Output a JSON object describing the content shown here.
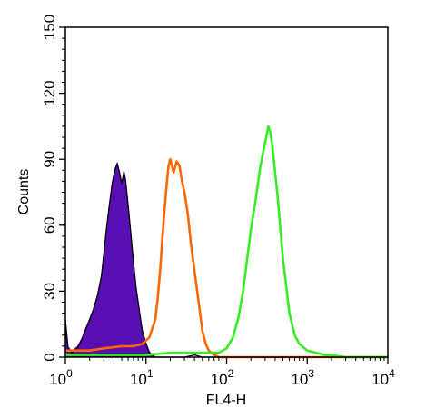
{
  "chart_data": {
    "type": "area",
    "xlabel": "FL4-H",
    "ylabel": "Counts",
    "xscale": "log",
    "xlim": [
      1,
      10000
    ],
    "ylim": [
      0,
      150
    ],
    "x_ticks": [
      {
        "base": "10",
        "exp": "0"
      },
      {
        "base": "10",
        "exp": "1"
      },
      {
        "base": "10",
        "exp": "2"
      },
      {
        "base": "10",
        "exp": "3"
      },
      {
        "base": "10",
        "exp": "4"
      }
    ],
    "y_ticks": [
      "0",
      "30",
      "60",
      "90",
      "120",
      "150"
    ],
    "grid": false,
    "series": [
      {
        "color": "#5a0fb4",
        "fill": true,
        "points": [
          [
            1.0,
            17
          ],
          [
            1.08,
            5
          ],
          [
            1.2,
            3
          ],
          [
            1.4,
            5
          ],
          [
            1.6,
            9
          ],
          [
            1.8,
            14
          ],
          [
            2.0,
            18
          ],
          [
            2.2,
            22
          ],
          [
            2.5,
            29
          ],
          [
            2.8,
            38
          ],
          [
            3.0,
            48
          ],
          [
            3.2,
            58
          ],
          [
            3.5,
            70
          ],
          [
            3.8,
            80
          ],
          [
            4.1,
            86
          ],
          [
            4.4,
            89
          ],
          [
            4.7,
            85
          ],
          [
            5.0,
            79
          ],
          [
            5.3,
            86
          ],
          [
            5.6,
            82
          ],
          [
            6.0,
            70
          ],
          [
            6.5,
            57
          ],
          [
            7.0,
            44
          ],
          [
            7.5,
            33
          ],
          [
            8.0,
            26
          ],
          [
            8.5,
            19
          ],
          [
            9.0,
            13
          ],
          [
            10.0,
            7
          ],
          [
            11.0,
            3
          ],
          [
            12.0,
            1
          ],
          [
            13.0,
            0
          ],
          [
            14.0,
            0
          ]
        ]
      },
      {
        "color": "#000000",
        "fill": false,
        "points": [
          [
            1.0,
            17
          ],
          [
            1.08,
            4
          ],
          [
            1.2,
            2
          ],
          [
            1.4,
            4
          ],
          [
            1.6,
            8
          ],
          [
            1.8,
            13
          ],
          [
            2.0,
            17
          ],
          [
            2.2,
            21
          ],
          [
            2.5,
            28
          ],
          [
            2.8,
            37
          ],
          [
            3.0,
            47
          ],
          [
            3.2,
            57
          ],
          [
            3.5,
            69
          ],
          [
            3.8,
            79
          ],
          [
            4.1,
            85
          ],
          [
            4.4,
            88
          ],
          [
            4.7,
            84
          ],
          [
            5.0,
            79
          ],
          [
            5.3,
            84
          ],
          [
            5.6,
            80
          ],
          [
            6.0,
            69
          ],
          [
            6.5,
            56
          ],
          [
            7.0,
            43
          ],
          [
            7.5,
            32
          ],
          [
            8.0,
            25
          ],
          [
            8.5,
            18
          ],
          [
            9.0,
            12
          ],
          [
            10.0,
            6
          ],
          [
            11.0,
            2
          ],
          [
            13.0,
            0
          ],
          [
            20.0,
            0
          ],
          [
            30.0,
            0
          ],
          [
            40.0,
            1
          ],
          [
            50.0,
            0
          ],
          [
            70.0,
            0
          ],
          [
            100.0,
            0
          ],
          [
            200.0,
            0
          ],
          [
            1000.0,
            0
          ],
          [
            10000.0,
            0
          ]
        ]
      },
      {
        "color": "#ff6600",
        "fill": false,
        "points": [
          [
            1.0,
            3
          ],
          [
            2.0,
            3
          ],
          [
            3.0,
            4
          ],
          [
            5.0,
            5
          ],
          [
            7.0,
            5
          ],
          [
            9.0,
            6
          ],
          [
            11.0,
            9
          ],
          [
            13.0,
            17
          ],
          [
            14.0,
            27
          ],
          [
            15.0,
            40
          ],
          [
            16.0,
            55
          ],
          [
            17.0,
            67
          ],
          [
            18.0,
            78
          ],
          [
            19.0,
            87
          ],
          [
            20.0,
            90
          ],
          [
            21.0,
            87
          ],
          [
            22.0,
            84
          ],
          [
            24.0,
            89
          ],
          [
            26.0,
            87
          ],
          [
            28.0,
            80
          ],
          [
            30.0,
            75
          ],
          [
            33.0,
            65
          ],
          [
            36.0,
            52
          ],
          [
            40.0,
            39
          ],
          [
            45.0,
            25
          ],
          [
            50.0,
            12
          ],
          [
            55.0,
            6
          ],
          [
            60.0,
            3
          ],
          [
            70.0,
            1
          ],
          [
            80.0,
            0
          ],
          [
            100.0,
            0
          ],
          [
            200.0,
            0
          ],
          [
            500.0,
            0
          ],
          [
            1000.0,
            0
          ],
          [
            10000.0,
            0
          ]
        ]
      },
      {
        "color": "#33ee22",
        "fill": false,
        "points": [
          [
            1.0,
            1
          ],
          [
            5.0,
            1
          ],
          [
            10.0,
            1
          ],
          [
            20.0,
            2
          ],
          [
            40.0,
            2
          ],
          [
            60.0,
            2
          ],
          [
            80.0,
            2
          ],
          [
            100.0,
            4
          ],
          [
            120.0,
            9
          ],
          [
            140.0,
            18
          ],
          [
            160.0,
            30
          ],
          [
            180.0,
            45
          ],
          [
            200.0,
            58
          ],
          [
            230.0,
            72
          ],
          [
            260.0,
            86
          ],
          [
            290.0,
            95
          ],
          [
            310.0,
            100
          ],
          [
            330.0,
            105
          ],
          [
            350.0,
            102
          ],
          [
            370.0,
            96
          ],
          [
            400.0,
            84
          ],
          [
            430.0,
            73
          ],
          [
            460.0,
            60
          ],
          [
            500.0,
            45
          ],
          [
            550.0,
            32
          ],
          [
            600.0,
            20
          ],
          [
            700.0,
            10
          ],
          [
            800.0,
            6
          ],
          [
            1000.0,
            3
          ],
          [
            1300.0,
            2
          ],
          [
            1700.0,
            1
          ],
          [
            2000.0,
            1
          ],
          [
            3000.0,
            0
          ],
          [
            5000.0,
            0
          ],
          [
            10000.0,
            0
          ]
        ]
      }
    ]
  }
}
